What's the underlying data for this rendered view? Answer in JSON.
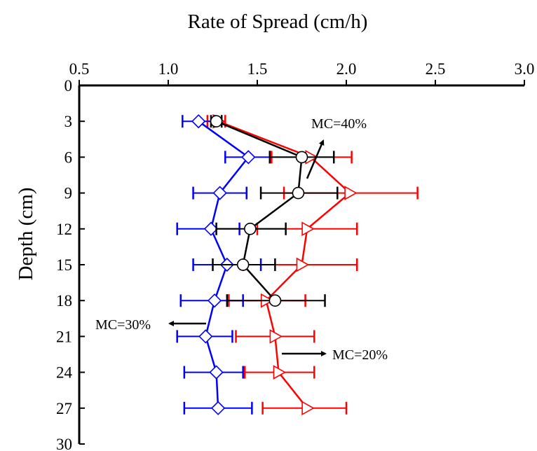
{
  "chart_data": {
    "type": "line",
    "title": "Rate of Spread (cm/h)",
    "xlabel": "Rate of Spread (cm/h)",
    "ylabel": "Depth (cm)",
    "xlim": [
      0.5,
      3.0
    ],
    "ylim": [
      0,
      30
    ],
    "x_axis_position": "top",
    "y_axis_inverted": true,
    "xticks": [
      "0.5",
      "1.0",
      "1.5",
      "2.0",
      "2.5",
      "3.0"
    ],
    "yticks": [
      "0",
      "3",
      "6",
      "9",
      "12",
      "15",
      "18",
      "21",
      "24",
      "27",
      "30"
    ],
    "grid": false,
    "series": [
      {
        "name": "MC=20%",
        "color": "#ff0000",
        "marker": "triangle-right-open",
        "depth": [
          3,
          6,
          9,
          12,
          15,
          18,
          21,
          24,
          27
        ],
        "rate": [
          1.28,
          1.8,
          2.02,
          1.78,
          1.75,
          1.55,
          1.6,
          1.62,
          1.78
        ],
        "err_low": [
          1.22,
          1.58,
          1.65,
          1.5,
          1.42,
          1.34,
          1.38,
          1.43,
          1.53
        ],
        "err_high": [
          1.32,
          2.03,
          2.4,
          2.06,
          2.06,
          1.77,
          1.82,
          1.82,
          2.0
        ]
      },
      {
        "name": "MC=30%",
        "color": "#0000ff",
        "marker": "diamond-open",
        "depth": [
          3,
          6,
          9,
          12,
          15,
          18,
          21,
          24,
          27
        ],
        "rate": [
          1.17,
          1.45,
          1.29,
          1.24,
          1.33,
          1.26,
          1.21,
          1.27,
          1.28
        ],
        "err_low": [
          1.08,
          1.32,
          1.14,
          1.05,
          1.14,
          1.07,
          1.05,
          1.09,
          1.09
        ],
        "err_high": [
          1.26,
          1.57,
          1.44,
          1.4,
          1.52,
          1.42,
          1.36,
          1.42,
          1.47
        ]
      },
      {
        "name": "MC=40%",
        "color": "#000000",
        "marker": "circle-open",
        "depth": [
          3,
          6,
          9,
          12,
          15,
          18
        ],
        "rate": [
          1.27,
          1.75,
          1.73,
          1.46,
          1.42,
          1.6
        ],
        "err_low": [
          1.24,
          1.57,
          1.52,
          1.27,
          1.25,
          1.33
        ],
        "err_high": [
          1.3,
          1.93,
          1.95,
          1.66,
          1.6,
          1.88
        ]
      }
    ],
    "annotations": [
      {
        "text": "MC=40%",
        "series": "MC=40%"
      },
      {
        "text": "MC=30%",
        "series": "MC=30%"
      },
      {
        "text": "MC=20%",
        "series": "MC=20%"
      }
    ]
  }
}
